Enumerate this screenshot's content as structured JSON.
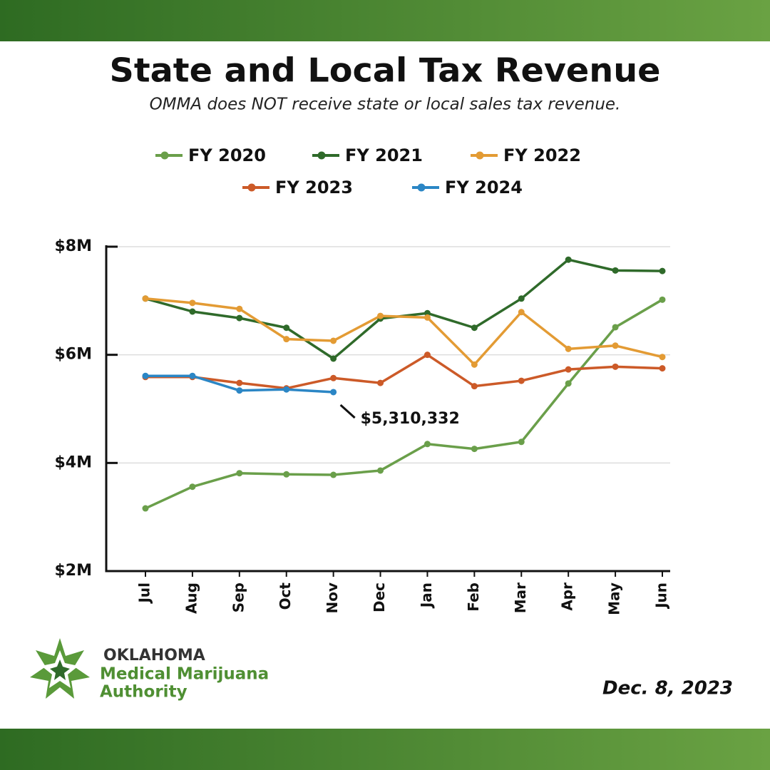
{
  "chart_data": {
    "type": "line",
    "title": "State and Local Tax Revenue",
    "subtitle": "OMMA does NOT receive state or local sales tax revenue.",
    "categories": [
      "Jul",
      "Aug",
      "Sep",
      "Oct",
      "Nov",
      "Dec",
      "Jan",
      "Feb",
      "Mar",
      "Apr",
      "May",
      "Jun"
    ],
    "series": [
      {
        "name": "FY 2020",
        "color": "#6a9f4a",
        "values": [
          3160000,
          3560000,
          3810000,
          3790000,
          3780000,
          3860000,
          4350000,
          4260000,
          4390000,
          5470000,
          6510000,
          7020000
        ]
      },
      {
        "name": "FY 2021",
        "color": "#2f6a2a",
        "values": [
          7040000,
          6800000,
          6680000,
          6500000,
          5930000,
          6670000,
          6770000,
          6500000,
          7040000,
          7760000,
          7560000,
          7550000
        ]
      },
      {
        "name": "FY 2022",
        "color": "#e39b34",
        "values": [
          7040000,
          6960000,
          6850000,
          6290000,
          6260000,
          6720000,
          6690000,
          5820000,
          6790000,
          6110000,
          6170000,
          5960000
        ]
      },
      {
        "name": "FY 2023",
        "color": "#cc5a28",
        "values": [
          5590000,
          5590000,
          5480000,
          5380000,
          5570000,
          5480000,
          6000000,
          5420000,
          5520000,
          5730000,
          5780000,
          5750000
        ]
      },
      {
        "name": "FY 2024",
        "color": "#2b86c5",
        "values": [
          5610000,
          5610000,
          5340000,
          5360000,
          5310332,
          null,
          null,
          null,
          null,
          null,
          null,
          null
        ],
        "value_labels": [
          null,
          null,
          null,
          null,
          "$5,310,332",
          null,
          null,
          null,
          null,
          null,
          null,
          null
        ]
      }
    ],
    "ylim": [
      2000000,
      8000000
    ],
    "yticks": [
      {
        "value": 2000000,
        "label": "$2M"
      },
      {
        "value": 4000000,
        "label": "$4M"
      },
      {
        "value": 6000000,
        "label": "$6M"
      },
      {
        "value": 8000000,
        "label": "$8M"
      }
    ],
    "grid": true
  },
  "footer": {
    "org": [
      "OKLAHOMA",
      "Medical Marijuana",
      "Authority"
    ],
    "date": "Dec. 8, 2023"
  }
}
